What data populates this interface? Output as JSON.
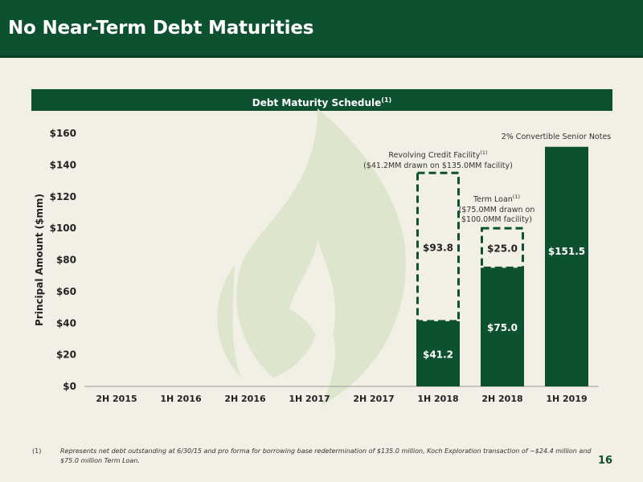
{
  "header": {
    "title": "No Near-Term Debt Maturities"
  },
  "band": {
    "title": "Debt Maturity Schedule",
    "sup": "(1)"
  },
  "colors": {
    "brand_green": "#0e5130",
    "background": "#f1efe6",
    "watermark": "#dde5cc"
  },
  "chart_data": {
    "type": "bar",
    "ylabel": "Principal Amount ($mm)",
    "ylim": [
      0,
      160
    ],
    "yticks": [
      "$0",
      "$20",
      "$40",
      "$60",
      "$80",
      "$100",
      "$120",
      "$140",
      "$160"
    ],
    "categories": [
      "2H 2015",
      "1H 2016",
      "2H 2016",
      "1H 2017",
      "2H 2017",
      "1H 2018",
      "2H 2018",
      "1H 2019"
    ],
    "drawn": [
      0,
      0,
      0,
      0,
      0,
      41.2,
      75.0,
      151.5
    ],
    "undrawn_capacity": [
      0,
      0,
      0,
      0,
      0,
      93.8,
      25.0,
      0
    ],
    "data_labels": {
      "drawn": [
        "",
        "",
        "",
        "",
        "",
        "$41.2",
        "$75.0",
        "$151.5"
      ],
      "undrawn": [
        "",
        "",
        "",
        "",
        "",
        "$93.8",
        "$25.0",
        ""
      ]
    },
    "annotations": {
      "revolver": {
        "line1": "Revolving Credit Facility",
        "sup": "(1)",
        "line2": "($41.2MM drawn on $135.0MM facility)"
      },
      "term_loan": {
        "line1": "Term Loan",
        "sup": "(1)",
        "line2": "($75.0MM drawn on",
        "line3": "$100.0MM facility)"
      },
      "notes": {
        "line1": "2% Convertible Senior Notes"
      }
    }
  },
  "footnote": {
    "number": "(1)",
    "text": "Represents net debt outstanding at 6/30/15 and pro forma for borrowing base redetermination of $135.0 million, Koch Exploration transaction of ~$24.4 million and $75.0 million Term Loan."
  },
  "page_number": "16"
}
